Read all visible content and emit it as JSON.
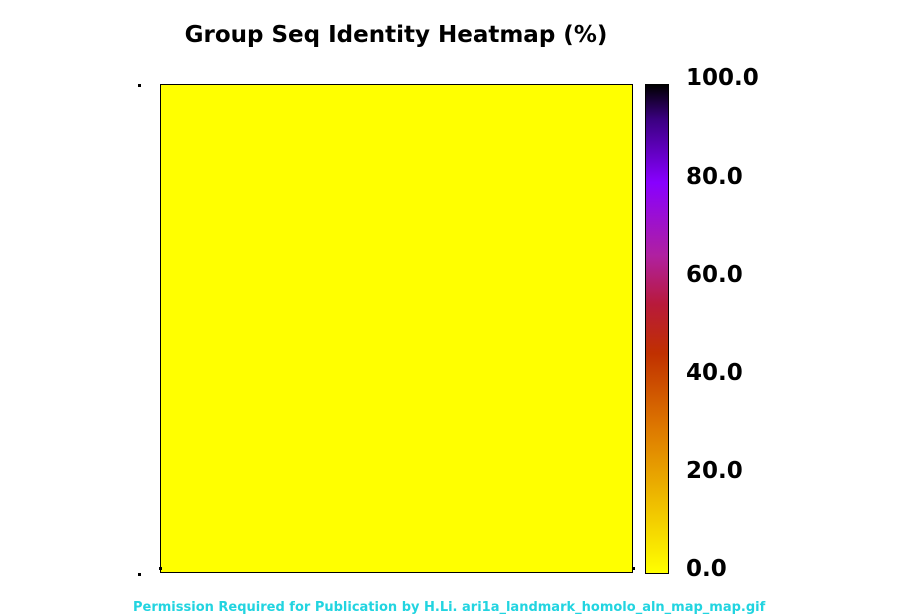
{
  "chart_data": {
    "type": "heatmap",
    "title": "Group Seq Identity Heatmap (%)",
    "x": [
      ""
    ],
    "y": [
      ""
    ],
    "values": [
      [
        0.0
      ]
    ],
    "colorbar": {
      "min": 0.0,
      "max": 100.0,
      "ticks": [
        "100.0",
        "80.0",
        "60.0",
        "40.0",
        "20.0",
        "0.0"
      ],
      "colormap": [
        "#ffff00",
        "#e8a000",
        "#d06000",
        "#b02000",
        "#b0208a",
        "#8a00ff",
        "#4a00b0",
        "#000000"
      ]
    },
    "cell_color": "#ffff00"
  },
  "footer": {
    "text": "Permission Required for Publication by H.Li. ari1a_landmark_homolo_aln_map_map.gif"
  }
}
